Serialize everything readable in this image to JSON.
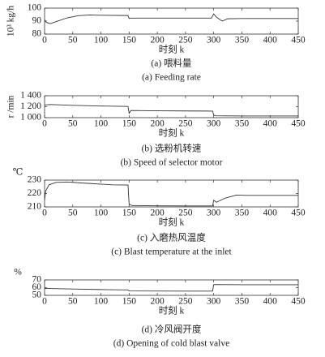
{
  "chart_data": [
    {
      "type": "line",
      "title": "(a) 喂料量",
      "subtitle": "(a) Feeding rate",
      "xlabel": "时刻 k",
      "ylabel": "10³ kg/h",
      "x": [
        0,
        3,
        10,
        20,
        40,
        60,
        80,
        100,
        148,
        150,
        152,
        200,
        250,
        296,
        300,
        305,
        315,
        325,
        350,
        400,
        450
      ],
      "values": [
        91,
        89,
        88,
        89.5,
        92.5,
        94.2,
        94.7,
        94.5,
        94.3,
        92,
        92.3,
        92.3,
        92.3,
        92.3,
        95.5,
        93,
        90,
        91.8,
        92,
        92,
        92
      ],
      "color": "#333333",
      "xlim": [
        0,
        450
      ],
      "xticks": [
        0,
        50,
        100,
        150,
        200,
        250,
        300,
        350,
        400,
        450
      ],
      "ylim": [
        80,
        100
      ],
      "yticks": [
        80,
        90,
        100
      ]
    },
    {
      "type": "line",
      "title": "(b) 选粉机转速",
      "subtitle": "(b) Speed of selector motor",
      "xlabel": "时刻 k",
      "ylabel": "r /min",
      "x": [
        0,
        10,
        50,
        100,
        148,
        150,
        153,
        200,
        250,
        298,
        300,
        303,
        350,
        400,
        450
      ],
      "values": [
        1230,
        1240,
        1225,
        1212,
        1205,
        1080,
        1130,
        1125,
        1122,
        1120,
        1050,
        1035,
        1030,
        1030,
        1030
      ],
      "color": "#333333",
      "xlim": [
        0,
        450
      ],
      "xticks": [
        0,
        50,
        100,
        150,
        200,
        250,
        300,
        350,
        400,
        450
      ],
      "ylim": [
        1000,
        1400
      ],
      "yticks": [
        {
          "value": 1000,
          "label": "1 000"
        },
        {
          "value": 1200,
          "label": "1 200"
        },
        {
          "value": 1400,
          "label": "1 400"
        }
      ]
    },
    {
      "type": "line",
      "title": "(c) 入磨热风温度",
      "subtitle": "(c) Blast temperature at the inlet",
      "xlabel": "时刻 k",
      "ylabel": "℃",
      "x": [
        0,
        2,
        8,
        20,
        40,
        80,
        120,
        148,
        150,
        155,
        200,
        250,
        298,
        300,
        305,
        320,
        340,
        360,
        400,
        450
      ],
      "values": [
        215,
        222,
        226.5,
        228.3,
        228.6,
        227.5,
        226.5,
        226.3,
        212,
        211,
        210.8,
        210.7,
        210.7,
        215,
        213.5,
        216.5,
        218.8,
        218.6,
        218.6,
        218.6
      ],
      "color": "#333333",
      "xlim": [
        0,
        450
      ],
      "xticks": [
        0,
        50,
        100,
        150,
        200,
        250,
        300,
        350,
        400,
        450
      ],
      "ylim": [
        210,
        230
      ],
      "yticks": [
        210,
        220,
        230
      ]
    },
    {
      "type": "line",
      "title": "(d) 冷风阀开度",
      "subtitle": "(d) Opening of cold blast valve",
      "xlabel": "时刻 k",
      "ylabel": "%",
      "x": [
        0,
        50,
        100,
        148,
        150,
        200,
        250,
        298,
        300,
        350,
        400,
        450
      ],
      "values": [
        59,
        58.2,
        57.5,
        57,
        55.7,
        55.6,
        55.5,
        55.5,
        64,
        63.8,
        63.8,
        63.8
      ],
      "color": "#333333",
      "xlim": [
        0,
        450
      ],
      "xticks": [
        0,
        50,
        100,
        150,
        200,
        250,
        300,
        350,
        400,
        450
      ],
      "ylim": [
        50,
        70
      ],
      "yticks": [
        50,
        60,
        70
      ]
    }
  ]
}
